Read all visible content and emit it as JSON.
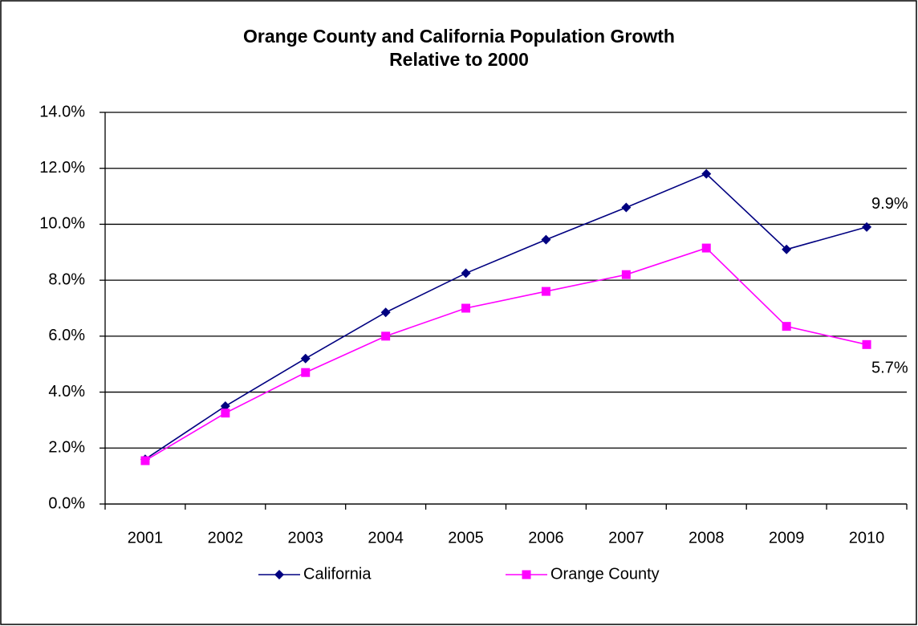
{
  "chart_data": {
    "type": "line",
    "title": [
      "Orange County and California Population Growth",
      "Relative to 2000"
    ],
    "categories": [
      "2001",
      "2002",
      "2003",
      "2004",
      "2005",
      "2006",
      "2007",
      "2008",
      "2009",
      "2010"
    ],
    "series": [
      {
        "name": "California",
        "color": "#000080",
        "marker": "diamond",
        "values": [
          1.6,
          3.5,
          5.2,
          6.85,
          8.25,
          9.45,
          10.6,
          11.8,
          9.1,
          9.9
        ],
        "value_labels": [
          null,
          null,
          null,
          null,
          null,
          null,
          null,
          null,
          null,
          "9.9%"
        ]
      },
      {
        "name": "Orange County",
        "color": "#ff00ff",
        "marker": "square",
        "values": [
          1.55,
          3.25,
          4.7,
          6.0,
          7.0,
          7.6,
          8.2,
          9.15,
          6.35,
          5.7
        ],
        "value_labels": [
          null,
          null,
          null,
          null,
          null,
          null,
          null,
          null,
          null,
          "5.7%"
        ]
      }
    ],
    "ylim": [
      0,
      14
    ],
    "yticks": [
      {
        "value": 0,
        "label": "0.0%"
      },
      {
        "value": 2,
        "label": "2.0%"
      },
      {
        "value": 4,
        "label": "4.0%"
      },
      {
        "value": 6,
        "label": "6.0%"
      },
      {
        "value": 8,
        "label": "8.0%"
      },
      {
        "value": 10,
        "label": "10.0%"
      },
      {
        "value": 12,
        "label": "12.0%"
      },
      {
        "value": 14,
        "label": "14.0%"
      }
    ],
    "grid": true,
    "legend": "bottom"
  }
}
